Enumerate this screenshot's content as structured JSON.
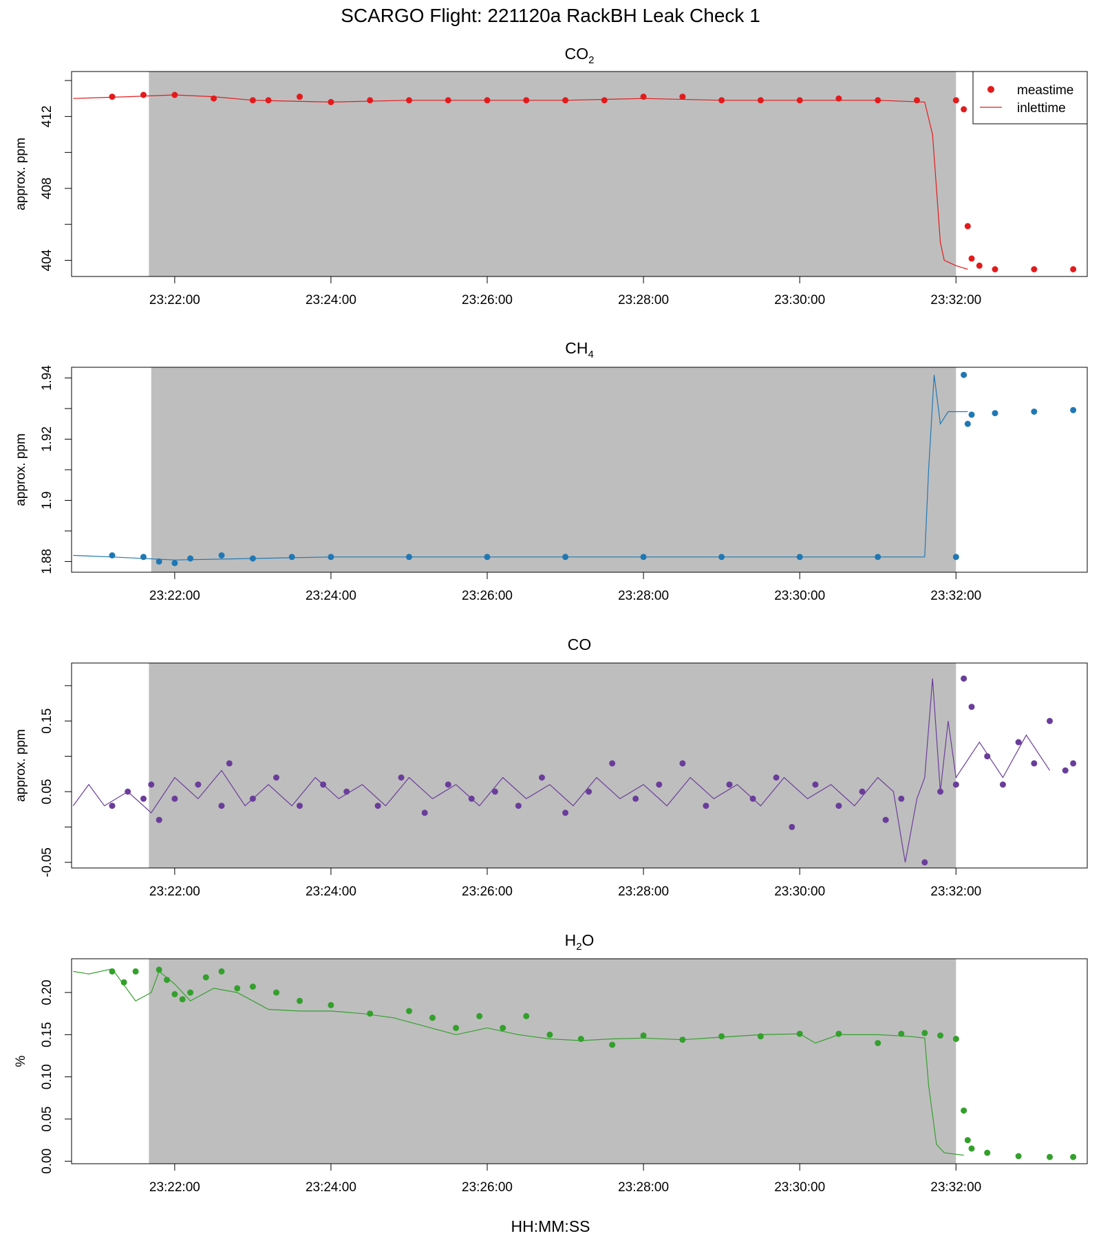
{
  "title": "SCARGO Flight: 221120a  RackBH Leak Check 1",
  "xlabel": "HH:MM:SS",
  "x_tick_labels": [
    "23:22:00",
    "23:24:00",
    "23:26:00",
    "23:28:00",
    "23:30:00",
    "23:32:00"
  ],
  "legend": {
    "meas_label": "meastime",
    "inlet_label": "inlettime"
  },
  "chart_data": [
    {
      "type": "scatter",
      "title": "CO",
      "title_subscript": "2",
      "ylabel": "approx. ppm",
      "color": "#e31a1c",
      "x_unit": "minutes after 23:22:00",
      "xlim": [
        -1.32,
        11.68
      ],
      "ylim": [
        403.1,
        414.5
      ],
      "y_ticks": [
        404,
        408,
        412
      ],
      "y_minor_ticks": [
        404,
        406,
        408,
        410,
        412,
        414
      ],
      "shaded_interval": [
        -0.33,
        10.0
      ],
      "legend_position": "top-right",
      "meastime": [
        [
          -0.8,
          413.1
        ],
        [
          -0.4,
          413.2
        ],
        [
          0.0,
          413.2
        ],
        [
          0.5,
          413.0
        ],
        [
          1.0,
          412.9
        ],
        [
          1.2,
          412.9
        ],
        [
          1.6,
          413.1
        ],
        [
          2.0,
          412.8
        ],
        [
          2.5,
          412.9
        ],
        [
          3.0,
          412.9
        ],
        [
          3.5,
          412.9
        ],
        [
          4.0,
          412.9
        ],
        [
          4.5,
          412.9
        ],
        [
          5.0,
          412.9
        ],
        [
          5.5,
          412.9
        ],
        [
          6.0,
          413.1
        ],
        [
          6.5,
          413.1
        ],
        [
          7.0,
          412.9
        ],
        [
          7.5,
          412.9
        ],
        [
          8.0,
          412.9
        ],
        [
          8.5,
          413.0
        ],
        [
          9.0,
          412.9
        ],
        [
          9.5,
          412.9
        ],
        [
          10.0,
          412.9
        ],
        [
          10.1,
          412.4
        ],
        [
          10.15,
          405.9
        ],
        [
          10.2,
          404.1
        ],
        [
          10.3,
          403.7
        ],
        [
          10.5,
          403.5
        ],
        [
          11.0,
          403.5
        ],
        [
          11.5,
          403.5
        ]
      ],
      "inlettime": [
        [
          -1.3,
          413.0
        ],
        [
          -0.6,
          413.1
        ],
        [
          0.0,
          413.2
        ],
        [
          0.5,
          413.1
        ],
        [
          1.0,
          412.9
        ],
        [
          2.0,
          412.8
        ],
        [
          3.0,
          412.9
        ],
        [
          4.0,
          412.9
        ],
        [
          5.0,
          412.9
        ],
        [
          6.0,
          413.0
        ],
        [
          7.0,
          412.9
        ],
        [
          8.0,
          412.9
        ],
        [
          9.0,
          412.9
        ],
        [
          9.6,
          412.8
        ],
        [
          9.7,
          411.0
        ],
        [
          9.75,
          408.0
        ],
        [
          9.8,
          405.0
        ],
        [
          9.85,
          404.0
        ],
        [
          10.0,
          403.7
        ],
        [
          10.15,
          403.5
        ]
      ]
    },
    {
      "type": "scatter",
      "title": "CH",
      "title_subscript": "4",
      "ylabel": "approx. ppm",
      "color": "#1f78b4",
      "x_unit": "minutes after 23:22:00",
      "xlim": [
        -1.32,
        11.68
      ],
      "ylim": [
        1.8765,
        1.9435
      ],
      "y_ticks": [
        1.88,
        1.9,
        1.92,
        1.94
      ],
      "y_minor_ticks": [
        1.88,
        1.89,
        1.9,
        1.91,
        1.92,
        1.93,
        1.94
      ],
      "shaded_interval": [
        -0.3,
        10.0
      ],
      "meastime": [
        [
          -0.8,
          1.882
        ],
        [
          -0.4,
          1.8815
        ],
        [
          -0.2,
          1.88
        ],
        [
          0.0,
          1.8795
        ],
        [
          0.2,
          1.881
        ],
        [
          0.6,
          1.882
        ],
        [
          1.0,
          1.881
        ],
        [
          1.5,
          1.8815
        ],
        [
          2.0,
          1.8815
        ],
        [
          3.0,
          1.8815
        ],
        [
          4.0,
          1.8815
        ],
        [
          5.0,
          1.8815
        ],
        [
          6.0,
          1.8815
        ],
        [
          7.0,
          1.8815
        ],
        [
          8.0,
          1.8815
        ],
        [
          9.0,
          1.8815
        ],
        [
          10.0,
          1.8815
        ],
        [
          10.1,
          1.941
        ],
        [
          10.15,
          1.925
        ],
        [
          10.2,
          1.928
        ],
        [
          10.5,
          1.9285
        ],
        [
          11.0,
          1.929
        ],
        [
          11.5,
          1.9295
        ]
      ],
      "inlettime": [
        [
          -1.3,
          1.882
        ],
        [
          -0.8,
          1.8815
        ],
        [
          0.0,
          1.8805
        ],
        [
          1.0,
          1.881
        ],
        [
          2.0,
          1.8815
        ],
        [
          3.0,
          1.8815
        ],
        [
          5.0,
          1.8815
        ],
        [
          7.0,
          1.8815
        ],
        [
          9.0,
          1.8815
        ],
        [
          9.6,
          1.8815
        ],
        [
          9.65,
          1.91
        ],
        [
          9.72,
          1.941
        ],
        [
          9.8,
          1.925
        ],
        [
          9.9,
          1.929
        ],
        [
          10.15,
          1.929
        ]
      ]
    },
    {
      "type": "scatter",
      "title": "CO",
      "title_subscript": "",
      "ylabel": "approx. ppm",
      "color": "#6a3d9a",
      "x_unit": "minutes after 23:22:00",
      "xlim": [
        -1.32,
        11.68
      ],
      "ylim": [
        -0.058,
        0.232
      ],
      "y_ticks": [
        -0.05,
        0.05,
        0.15
      ],
      "y_minor_ticks": [
        -0.05,
        0.0,
        0.05,
        0.1,
        0.15,
        0.2
      ],
      "shaded_interval": [
        -0.33,
        10.0
      ],
      "meastime": [
        [
          -0.8,
          0.03
        ],
        [
          -0.6,
          0.05
        ],
        [
          -0.4,
          0.04
        ],
        [
          -0.3,
          0.06
        ],
        [
          -0.2,
          0.01
        ],
        [
          0.0,
          0.04
        ],
        [
          0.3,
          0.06
        ],
        [
          0.6,
          0.03
        ],
        [
          0.7,
          0.09
        ],
        [
          1.0,
          0.04
        ],
        [
          1.3,
          0.07
        ],
        [
          1.6,
          0.03
        ],
        [
          1.9,
          0.06
        ],
        [
          2.2,
          0.05
        ],
        [
          2.6,
          0.03
        ],
        [
          2.9,
          0.07
        ],
        [
          3.2,
          0.02
        ],
        [
          3.5,
          0.06
        ],
        [
          3.8,
          0.04
        ],
        [
          4.1,
          0.05
        ],
        [
          4.4,
          0.03
        ],
        [
          4.7,
          0.07
        ],
        [
          5.0,
          0.02
        ],
        [
          5.3,
          0.05
        ],
        [
          5.6,
          0.09
        ],
        [
          5.9,
          0.04
        ],
        [
          6.2,
          0.06
        ],
        [
          6.5,
          0.09
        ],
        [
          6.8,
          0.03
        ],
        [
          7.1,
          0.06
        ],
        [
          7.4,
          0.04
        ],
        [
          7.7,
          0.07
        ],
        [
          7.9,
          0.0
        ],
        [
          8.2,
          0.06
        ],
        [
          8.5,
          0.03
        ],
        [
          8.8,
          0.05
        ],
        [
          9.1,
          0.01
        ],
        [
          9.3,
          0.04
        ],
        [
          9.6,
          -0.05
        ],
        [
          9.8,
          0.05
        ],
        [
          10.0,
          0.06
        ],
        [
          10.1,
          0.21
        ],
        [
          10.2,
          0.17
        ],
        [
          10.4,
          0.1
        ],
        [
          10.6,
          0.06
        ],
        [
          10.8,
          0.12
        ],
        [
          11.0,
          0.09
        ],
        [
          11.2,
          0.15
        ],
        [
          11.4,
          0.08
        ],
        [
          11.5,
          0.09
        ]
      ],
      "inlettime": [
        [
          -1.3,
          0.03
        ],
        [
          -1.1,
          0.06
        ],
        [
          -0.9,
          0.03
        ],
        [
          -0.6,
          0.05
        ],
        [
          -0.3,
          0.02
        ],
        [
          0.0,
          0.07
        ],
        [
          0.3,
          0.04
        ],
        [
          0.6,
          0.08
        ],
        [
          0.9,
          0.03
        ],
        [
          1.2,
          0.06
        ],
        [
          1.5,
          0.03
        ],
        [
          1.8,
          0.07
        ],
        [
          2.1,
          0.04
        ],
        [
          2.4,
          0.06
        ],
        [
          2.7,
          0.03
        ],
        [
          3.0,
          0.07
        ],
        [
          3.3,
          0.04
        ],
        [
          3.6,
          0.06
        ],
        [
          3.9,
          0.03
        ],
        [
          4.2,
          0.07
        ],
        [
          4.5,
          0.04
        ],
        [
          4.8,
          0.06
        ],
        [
          5.1,
          0.03
        ],
        [
          5.4,
          0.07
        ],
        [
          5.7,
          0.04
        ],
        [
          6.0,
          0.06
        ],
        [
          6.3,
          0.03
        ],
        [
          6.6,
          0.07
        ],
        [
          6.9,
          0.04
        ],
        [
          7.2,
          0.06
        ],
        [
          7.5,
          0.03
        ],
        [
          7.8,
          0.07
        ],
        [
          8.1,
          0.04
        ],
        [
          8.4,
          0.06
        ],
        [
          8.7,
          0.03
        ],
        [
          9.0,
          0.07
        ],
        [
          9.2,
          0.05
        ],
        [
          9.35,
          -0.05
        ],
        [
          9.5,
          0.04
        ],
        [
          9.6,
          0.07
        ],
        [
          9.7,
          0.21
        ],
        [
          9.8,
          0.05
        ],
        [
          9.9,
          0.15
        ],
        [
          10.0,
          0.07
        ],
        [
          10.3,
          0.12
        ],
        [
          10.6,
          0.07
        ],
        [
          10.9,
          0.13
        ],
        [
          11.2,
          0.08
        ]
      ]
    },
    {
      "type": "scatter",
      "title": "H",
      "title_suffix": "O",
      "title_subscript": "2",
      "ylabel": "%",
      "color": "#33a02c",
      "x_unit": "minutes after 23:22:00",
      "xlim": [
        -1.32,
        11.68
      ],
      "ylim": [
        -0.003,
        0.24
      ],
      "y_ticks": [
        0.0,
        0.05,
        0.1,
        0.15,
        0.2
      ],
      "y_tick_labels": [
        "0.00",
        "0.05",
        "0.10",
        "0.15",
        "0.20"
      ],
      "y_minor_ticks": [
        0.0,
        0.05,
        0.1,
        0.15,
        0.2
      ],
      "shaded_interval": [
        -0.33,
        10.0
      ],
      "meastime": [
        [
          -0.8,
          0.225
        ],
        [
          -0.65,
          0.212
        ],
        [
          -0.5,
          0.225
        ],
        [
          -0.2,
          0.227
        ],
        [
          -0.1,
          0.215
        ],
        [
          0.0,
          0.198
        ],
        [
          0.1,
          0.192
        ],
        [
          0.2,
          0.2
        ],
        [
          0.4,
          0.218
        ],
        [
          0.6,
          0.225
        ],
        [
          0.8,
          0.205
        ],
        [
          1.0,
          0.207
        ],
        [
          1.3,
          0.2
        ],
        [
          1.6,
          0.19
        ],
        [
          2.0,
          0.185
        ],
        [
          2.5,
          0.175
        ],
        [
          3.0,
          0.178
        ],
        [
          3.3,
          0.17
        ],
        [
          3.6,
          0.158
        ],
        [
          3.9,
          0.172
        ],
        [
          4.2,
          0.158
        ],
        [
          4.5,
          0.172
        ],
        [
          4.8,
          0.15
        ],
        [
          5.2,
          0.145
        ],
        [
          5.6,
          0.138
        ],
        [
          6.0,
          0.149
        ],
        [
          6.5,
          0.144
        ],
        [
          7.0,
          0.148
        ],
        [
          7.5,
          0.148
        ],
        [
          8.0,
          0.151
        ],
        [
          8.5,
          0.151
        ],
        [
          9.0,
          0.14
        ],
        [
          9.3,
          0.151
        ],
        [
          9.6,
          0.152
        ],
        [
          9.8,
          0.149
        ],
        [
          10.0,
          0.145
        ],
        [
          10.1,
          0.06
        ],
        [
          10.15,
          0.025
        ],
        [
          10.2,
          0.015
        ],
        [
          10.4,
          0.01
        ],
        [
          10.8,
          0.006
        ],
        [
          11.2,
          0.005
        ],
        [
          11.5,
          0.005
        ]
      ],
      "inlettime": [
        [
          -1.3,
          0.225
        ],
        [
          -1.1,
          0.222
        ],
        [
          -0.8,
          0.228
        ],
        [
          -0.5,
          0.19
        ],
        [
          -0.3,
          0.2
        ],
        [
          -0.2,
          0.225
        ],
        [
          0.0,
          0.21
        ],
        [
          0.2,
          0.19
        ],
        [
          0.5,
          0.205
        ],
        [
          0.8,
          0.2
        ],
        [
          1.2,
          0.18
        ],
        [
          1.6,
          0.178
        ],
        [
          2.0,
          0.178
        ],
        [
          2.4,
          0.175
        ],
        [
          2.8,
          0.17
        ],
        [
          3.2,
          0.16
        ],
        [
          3.6,
          0.15
        ],
        [
          4.0,
          0.158
        ],
        [
          4.4,
          0.15
        ],
        [
          4.8,
          0.145
        ],
        [
          5.2,
          0.143
        ],
        [
          5.6,
          0.145
        ],
        [
          6.0,
          0.146
        ],
        [
          6.5,
          0.144
        ],
        [
          7.0,
          0.147
        ],
        [
          7.5,
          0.15
        ],
        [
          8.0,
          0.151
        ],
        [
          8.2,
          0.14
        ],
        [
          8.5,
          0.15
        ],
        [
          9.0,
          0.15
        ],
        [
          9.4,
          0.148
        ],
        [
          9.6,
          0.146
        ],
        [
          9.65,
          0.09
        ],
        [
          9.75,
          0.02
        ],
        [
          9.85,
          0.01
        ],
        [
          10.1,
          0.007
        ]
      ]
    }
  ]
}
